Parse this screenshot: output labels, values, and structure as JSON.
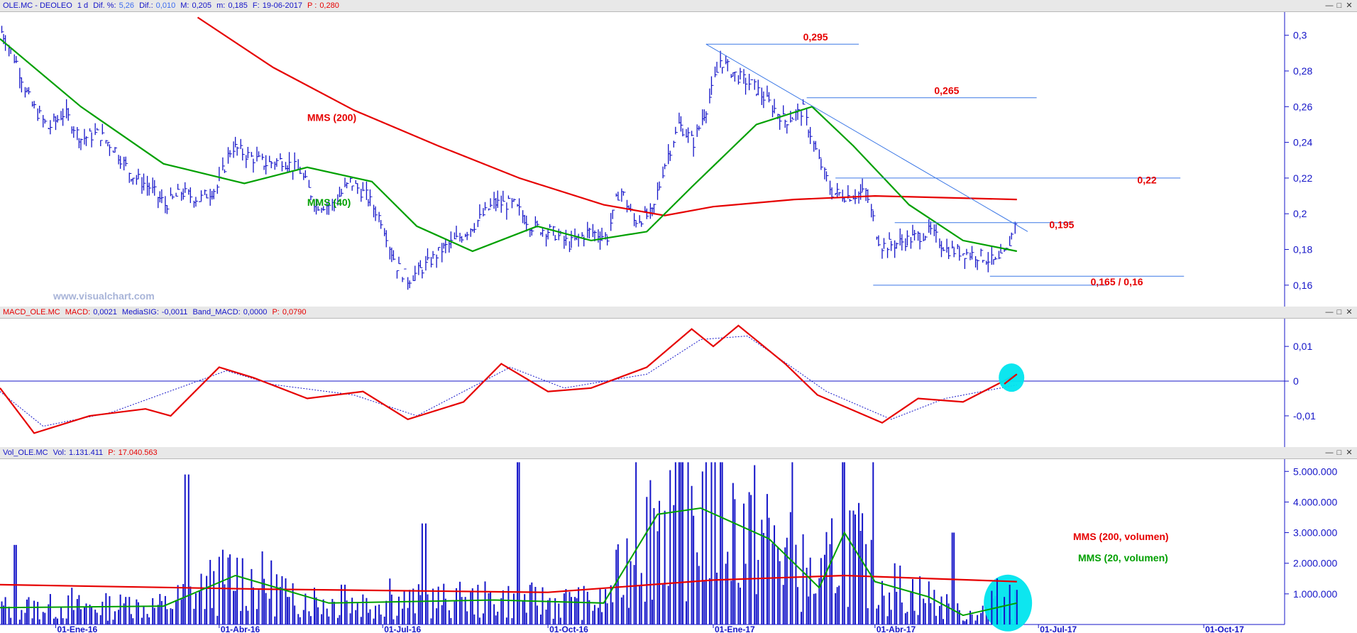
{
  "panels": {
    "price": {
      "header": {
        "symbol": "OLE.MC - DEOLEO",
        "period": "1 d",
        "dif_pct_label": "Dif. %:",
        "dif_pct": "5,26",
        "dif_label": "Dif.:",
        "dif": "0,010",
        "max_label": "M:",
        "max": "0,205",
        "min_label": "m:",
        "min": "0,185",
        "date_label": "F:",
        "date": "19-06-2017",
        "p_label": "P :",
        "p": "0,280"
      },
      "watermark": "www.visualchart.com",
      "annotations": [
        "0,295",
        "0,265",
        "0,22",
        "0,195",
        "0,165 / 0,16",
        "MMS (200)",
        "MMS (40)"
      ],
      "y_ticks": [
        "0,3",
        "0,28",
        "0,26",
        "0,24",
        "0,22",
        "0,2",
        "0,18",
        "0,16"
      ]
    },
    "macd": {
      "header": {
        "name": "MACD_OLE.MC",
        "macd_label": "MACD:",
        "macd": "0,0021",
        "sig_label": "MediaSIG:",
        "sig": "-0,0011",
        "band_label": "Band_MACD:",
        "band": "0,0000",
        "p_label": "P:",
        "p": "0,0790"
      },
      "y_ticks": [
        "0,01",
        "0",
        "-0,01"
      ]
    },
    "volume": {
      "header": {
        "name": "Vol_OLE.MC",
        "vol_label": "Vol:",
        "vol": "1.131.411",
        "p_label": "P:",
        "p": "17.040.563"
      },
      "legend": [
        "MMS (200, volumen)",
        "MMS (20, volumen)"
      ],
      "y_ticks": [
        "5.000.000",
        "4.000.000",
        "3.000.000",
        "2.000.000",
        "1.000.000"
      ]
    }
  },
  "x_ticks": [
    "01-Ene-16",
    "01-Abr-16",
    "01-Jul-16",
    "01-Oct-16",
    "01-Ene-17",
    "01-Abr-17",
    "01-Jul-17",
    "01-Oct-17"
  ],
  "colors": {
    "price": "#1414c8",
    "mms200": "#e60000",
    "mms40": "#00a000",
    "annot": "#e60000",
    "level_line": "#3c78e6",
    "highlight": "#00e5ee"
  },
  "chart_data": [
    {
      "type": "line",
      "title": "OLE.MC - DEOLEO",
      "x_range": [
        "2015-12-01",
        "2017-11-15"
      ],
      "ylim": [
        0.148,
        0.313
      ],
      "x_ticks": [
        "01-Ene-16",
        "01-Abr-16",
        "01-Jul-16",
        "01-Oct-16",
        "01-Ene-17",
        "01-Abr-17",
        "01-Jul-17",
        "01-Oct-17"
      ],
      "series": [
        {
          "name": "OLE.MC",
          "points": [
            [
              "2015-12-02",
              0.302
            ],
            [
              "2015-12-10",
              0.285
            ],
            [
              "2015-12-18",
              0.262
            ],
            [
              "2015-12-28",
              0.248
            ],
            [
              "2016-01-06",
              0.257
            ],
            [
              "2016-01-15",
              0.242
            ],
            [
              "2016-01-25",
              0.245
            ],
            [
              "2016-02-03",
              0.236
            ],
            [
              "2016-02-12",
              0.222
            ],
            [
              "2016-02-22",
              0.215
            ],
            [
              "2016-03-02",
              0.205
            ],
            [
              "2016-03-11",
              0.212
            ],
            [
              "2016-03-21",
              0.208
            ],
            [
              "2016-03-31",
              0.215
            ],
            [
              "2016-04-08",
              0.238
            ],
            [
              "2016-04-18",
              0.232
            ],
            [
              "2016-04-27",
              0.228
            ],
            [
              "2016-05-06",
              0.23
            ],
            [
              "2016-05-16",
              0.224
            ],
            [
              "2016-05-25",
              0.205
            ],
            [
              "2016-06-03",
              0.205
            ],
            [
              "2016-06-13",
              0.218
            ],
            [
              "2016-06-22",
              0.21
            ],
            [
              "2016-07-01",
              0.195
            ],
            [
              "2016-07-08",
              0.172
            ],
            [
              "2016-07-15",
              0.163
            ],
            [
              "2016-07-25",
              0.171
            ],
            [
              "2016-08-03",
              0.18
            ],
            [
              "2016-08-12",
              0.186
            ],
            [
              "2016-08-22",
              0.195
            ],
            [
              "2016-09-01",
              0.206
            ],
            [
              "2016-09-12",
              0.205
            ],
            [
              "2016-09-22",
              0.193
            ],
            [
              "2016-10-03",
              0.19
            ],
            [
              "2016-10-13",
              0.183
            ],
            [
              "2016-10-24",
              0.19
            ],
            [
              "2016-11-03",
              0.187
            ],
            [
              "2016-11-10",
              0.215
            ],
            [
              "2016-11-18",
              0.196
            ],
            [
              "2016-11-28",
              0.2
            ],
            [
              "2016-12-05",
              0.228
            ],
            [
              "2016-12-13",
              0.25
            ],
            [
              "2016-12-21",
              0.24
            ],
            [
              "2016-12-29",
              0.262
            ],
            [
              "2017-01-05",
              0.286
            ],
            [
              "2017-01-13",
              0.278
            ],
            [
              "2017-01-23",
              0.272
            ],
            [
              "2017-02-01",
              0.262
            ],
            [
              "2017-02-10",
              0.252
            ],
            [
              "2017-02-20",
              0.258
            ],
            [
              "2017-02-28",
              0.232
            ],
            [
              "2017-03-08",
              0.212
            ],
            [
              "2017-03-17",
              0.21
            ],
            [
              "2017-03-27",
              0.212
            ],
            [
              "2017-04-04",
              0.182
            ],
            [
              "2017-04-12",
              0.183
            ],
            [
              "2017-04-21",
              0.186
            ],
            [
              "2017-05-02",
              0.19
            ],
            [
              "2017-05-11",
              0.18
            ],
            [
              "2017-05-22",
              0.178
            ],
            [
              "2017-05-31",
              0.176
            ],
            [
              "2017-06-08",
              0.172
            ],
            [
              "2017-06-14",
              0.18
            ],
            [
              "2017-06-19",
              0.2
            ]
          ]
        },
        {
          "name": "MMS (200)",
          "points": [
            [
              "2016-03-20",
              0.31
            ],
            [
              "2016-05-01",
              0.282
            ],
            [
              "2016-06-15",
              0.258
            ],
            [
              "2016-08-01",
              0.238
            ],
            [
              "2016-09-15",
              0.22
            ],
            [
              "2016-11-01",
              0.205
            ],
            [
              "2016-12-05",
              0.199
            ],
            [
              "2017-01-01",
              0.204
            ],
            [
              "2017-02-15",
              0.208
            ],
            [
              "2017-04-01",
              0.21
            ],
            [
              "2017-06-19",
              0.208
            ]
          ]
        },
        {
          "name": "MMS (40)",
          "points": [
            [
              "2015-12-01",
              0.298
            ],
            [
              "2016-01-15",
              0.26
            ],
            [
              "2016-03-01",
              0.228
            ],
            [
              "2016-04-15",
              0.217
            ],
            [
              "2016-05-20",
              0.226
            ],
            [
              "2016-06-25",
              0.218
            ],
            [
              "2016-07-20",
              0.193
            ],
            [
              "2016-08-20",
              0.179
            ],
            [
              "2016-09-25",
              0.193
            ],
            [
              "2016-10-25",
              0.185
            ],
            [
              "2016-11-25",
              0.19
            ],
            [
              "2016-12-20",
              0.215
            ],
            [
              "2017-01-25",
              0.25
            ],
            [
              "2017-02-25",
              0.26
            ],
            [
              "2017-03-20",
              0.238
            ],
            [
              "2017-04-20",
              0.205
            ],
            [
              "2017-05-20",
              0.185
            ],
            [
              "2017-06-19",
              0.179
            ]
          ]
        }
      ]
    },
    {
      "type": "line",
      "title": "MACD_OLE.MC",
      "ylim": [
        -0.019,
        0.018
      ],
      "series": [
        {
          "name": "MACD",
          "points": [
            [
              "2015-12-01",
              -0.002
            ],
            [
              "2015-12-20",
              -0.015
            ],
            [
              "2016-01-20",
              -0.01
            ],
            [
              "2016-02-20",
              -0.008
            ],
            [
              "2016-03-05",
              -0.01
            ],
            [
              "2016-04-01",
              0.004
            ],
            [
              "2016-04-20",
              0.001
            ],
            [
              "2016-05-20",
              -0.005
            ],
            [
              "2016-06-20",
              -0.003
            ],
            [
              "2016-07-15",
              -0.011
            ],
            [
              "2016-08-15",
              -0.006
            ],
            [
              "2016-09-05",
              0.005
            ],
            [
              "2016-10-01",
              -0.003
            ],
            [
              "2016-10-25",
              -0.002
            ],
            [
              "2016-11-25",
              0.004
            ],
            [
              "2016-12-20",
              0.015
            ],
            [
              "2017-01-01",
              0.01
            ],
            [
              "2017-01-15",
              0.016
            ],
            [
              "2017-02-10",
              0.005
            ],
            [
              "2017-02-28",
              -0.004
            ],
            [
              "2017-04-05",
              -0.012
            ],
            [
              "2017-04-25",
              -0.005
            ],
            [
              "2017-05-20",
              -0.006
            ],
            [
              "2017-06-19",
              0.002
            ]
          ]
        },
        {
          "name": "MediaSIG",
          "points": [
            [
              "2015-12-01",
              -0.003
            ],
            [
              "2015-12-25",
              -0.013
            ],
            [
              "2016-02-01",
              -0.009
            ],
            [
              "2016-04-05",
              0.003
            ],
            [
              "2016-05-01",
              -0.001
            ],
            [
              "2016-06-15",
              -0.004
            ],
            [
              "2016-07-20",
              -0.01
            ],
            [
              "2016-09-10",
              0.004
            ],
            [
              "2016-10-10",
              -0.002
            ],
            [
              "2016-11-25",
              0.002
            ],
            [
              "2016-12-25",
              0.012
            ],
            [
              "2017-01-20",
              0.013
            ],
            [
              "2017-03-05",
              -0.003
            ],
            [
              "2017-04-10",
              -0.011
            ],
            [
              "2017-05-10",
              -0.005
            ],
            [
              "2017-06-19",
              -0.0011
            ]
          ]
        }
      ]
    },
    {
      "type": "bar",
      "title": "Vol_OLE.MC",
      "ylim": [
        0,
        5400000
      ],
      "series": [
        {
          "name": "Vol",
          "points": [
            [
              "2015-12-10",
              2600000
            ],
            [
              "2016-01-10",
              1200000
            ],
            [
              "2016-02-10",
              900000
            ],
            [
              "2016-03-15",
              4900000
            ],
            [
              "2016-04-10",
              1100000
            ],
            [
              "2016-05-10",
              900000
            ],
            [
              "2016-06-10",
              1300000
            ],
            [
              "2016-07-05",
              1500000
            ],
            [
              "2016-07-25",
              3300000
            ],
            [
              "2016-08-15",
              900000
            ],
            [
              "2016-09-15",
              5300000
            ],
            [
              "2016-10-15",
              900000
            ],
            [
              "2016-11-20",
              5300000
            ],
            [
              "2016-12-15",
              5300000
            ],
            [
              "2017-01-05",
              5300000
            ],
            [
              "2017-02-15",
              5300000
            ],
            [
              "2017-03-15",
              5300000
            ],
            [
              "2017-04-01",
              5300000
            ],
            [
              "2017-05-15",
              3000000
            ],
            [
              "2017-06-19",
              1131411
            ]
          ]
        },
        {
          "name": "MMS (200, volumen)",
          "points": [
            [
              "2015-12-01",
              1300000
            ],
            [
              "2016-05-01",
              1150000
            ],
            [
              "2016-10-01",
              1050000
            ],
            [
              "2017-01-01",
              1450000
            ],
            [
              "2017-03-15",
              1600000
            ],
            [
              "2017-06-19",
              1400000
            ]
          ]
        },
        {
          "name": "MMS (20, volumen)",
          "points": [
            [
              "2015-12-01",
              550000
            ],
            [
              "2016-03-01",
              600000
            ],
            [
              "2016-04-10",
              1600000
            ],
            [
              "2016-06-01",
              700000
            ],
            [
              "2016-09-01",
              800000
            ],
            [
              "2016-11-01",
              700000
            ],
            [
              "2016-12-01",
              3600000
            ],
            [
              "2016-12-25",
              3800000
            ],
            [
              "2017-02-01",
              2800000
            ],
            [
              "2017-03-01",
              1200000
            ],
            [
              "2017-03-15",
              3000000
            ],
            [
              "2017-04-01",
              1400000
            ],
            [
              "2017-05-01",
              900000
            ],
            [
              "2017-05-20",
              300000
            ],
            [
              "2017-06-19",
              700000
            ]
          ]
        }
      ]
    }
  ]
}
